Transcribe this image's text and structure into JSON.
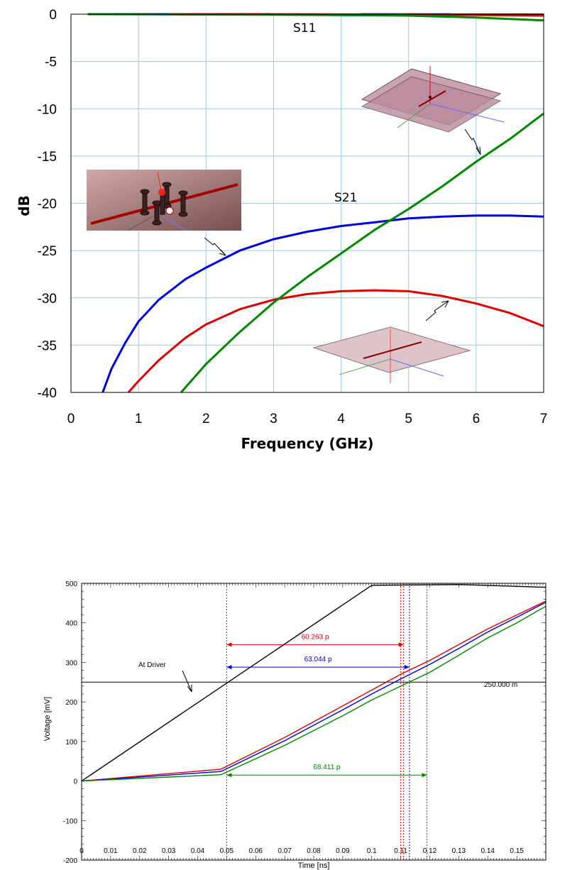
{
  "chart_data": [
    {
      "type": "line",
      "title": "",
      "xlabel": "Frequency (GHz)",
      "ylabel": "dB",
      "xlim": [
        0,
        7
      ],
      "ylim": [
        -40,
        0
      ],
      "xticks": [
        "0",
        "1",
        "2",
        "3",
        "4",
        "5",
        "6",
        "7"
      ],
      "yticks": [
        "0",
        "-5",
        "-10",
        "-15",
        "-20",
        "-25",
        "-30",
        "-35",
        "-40"
      ],
      "grid": true,
      "curve_labels": [
        "S11",
        "S21"
      ],
      "series": [
        {
          "color": "#0000dd",
          "group": "S11",
          "x": [
            0.25,
            7
          ],
          "y": [
            0,
            -0.02
          ]
        },
        {
          "color": "#dd0000",
          "group": "S11",
          "x": [
            1.45,
            5.0,
            6.0,
            7.0
          ],
          "y": [
            0,
            -0.03,
            -0.08,
            -0.15
          ]
        },
        {
          "color": "#008800",
          "group": "S11",
          "x": [
            0.25,
            3.0,
            5.0,
            6.0,
            7.0
          ],
          "y": [
            0,
            -0.05,
            -0.15,
            -0.35,
            -0.65
          ]
        },
        {
          "color": "#0000dd",
          "group": "S21",
          "x": [
            0.47,
            0.6,
            0.8,
            1.0,
            1.3,
            1.7,
            2.0,
            2.5,
            3.0,
            3.5,
            4.0,
            4.5,
            5.0,
            5.5,
            6.0,
            6.5,
            7.0
          ],
          "y": [
            -40,
            -37.5,
            -34.8,
            -32.5,
            -30.2,
            -28.0,
            -26.8,
            -25.0,
            -23.8,
            -23.0,
            -22.4,
            -22.0,
            -21.6,
            -21.4,
            -21.3,
            -21.3,
            -21.4
          ]
        },
        {
          "color": "#dd0000",
          "group": "S21",
          "x": [
            0.85,
            1.0,
            1.3,
            1.7,
            2.0,
            2.5,
            3.0,
            3.5,
            4.0,
            4.5,
            5.0,
            5.5,
            6.0,
            6.5,
            7.0
          ],
          "y": [
            -40,
            -38.8,
            -36.6,
            -34.2,
            -32.8,
            -31.2,
            -30.2,
            -29.6,
            -29.3,
            -29.2,
            -29.3,
            -29.8,
            -30.6,
            -31.6,
            -33.0
          ]
        },
        {
          "color": "#008800",
          "group": "S21",
          "x": [
            1.63,
            2.0,
            2.5,
            3.0,
            3.5,
            4.0,
            4.5,
            5.0,
            5.5,
            6.0,
            6.5,
            7.0
          ],
          "y": [
            -40,
            -37.0,
            -33.6,
            -30.5,
            -27.8,
            -25.3,
            -22.8,
            -20.6,
            -18.2,
            -15.6,
            -13.2,
            -10.5
          ]
        }
      ]
    },
    {
      "type": "line",
      "title": "",
      "xlabel": "Time [ns]",
      "ylabel": "Voltage [mV]",
      "xlim": [
        0,
        0.16
      ],
      "ylim": [
        -200,
        500
      ],
      "xticks": [
        "0",
        "0.01",
        "0.02",
        "0.03",
        "0.04",
        "0.05",
        "0.06",
        "0.07",
        "0.08",
        "0.09",
        "0.1",
        "0.11",
        "0.12",
        "0.13",
        "0.14",
        "0.15"
      ],
      "yticks": [
        "500",
        "400",
        "300",
        "200",
        "100",
        "0",
        "-100",
        "-200"
      ],
      "threshold": {
        "value": 250,
        "label": "250.000 m"
      },
      "series": [
        {
          "name": "At Driver",
          "color": "#000000",
          "x": [
            0,
            0.1,
            0.13,
            0.16
          ],
          "y": [
            0,
            495,
            497,
            490
          ]
        },
        {
          "color": "#dd0000",
          "x": [
            0,
            0.048,
            0.07,
            0.09,
            0.1,
            0.11,
            0.12,
            0.13,
            0.14,
            0.15,
            0.16
          ],
          "y": [
            0,
            30,
            110,
            190,
            230,
            270,
            305,
            345,
            385,
            420,
            455
          ]
        },
        {
          "color": "#0000dd",
          "x": [
            0,
            0.048,
            0.07,
            0.09,
            0.1,
            0.11,
            0.12,
            0.13,
            0.14,
            0.15,
            0.16
          ],
          "y": [
            0,
            24,
            102,
            180,
            220,
            258,
            295,
            335,
            377,
            414,
            452
          ]
        },
        {
          "color": "#008800",
          "x": [
            0,
            0.048,
            0.07,
            0.09,
            0.1,
            0.11,
            0.12,
            0.13,
            0.14,
            0.15,
            0.16
          ],
          "y": [
            0,
            16,
            90,
            165,
            205,
            240,
            275,
            318,
            362,
            400,
            442
          ]
        }
      ],
      "delays": [
        {
          "label": "60.263 p",
          "color": "#dd0000",
          "x1": 0.05,
          "x2": 0.111,
          "y": 345
        },
        {
          "label": "63.044 p",
          "color": "#0000dd",
          "x1": 0.05,
          "x2": 0.113,
          "y": 288
        },
        {
          "label": "68.411 p",
          "color": "#008800",
          "x1": 0.05,
          "x2": 0.119,
          "y": 15
        }
      ],
      "markers": [
        {
          "x": 0.05,
          "color": "#008800"
        },
        {
          "x": 0.11,
          "color": "#dd0000"
        },
        {
          "x": 0.111,
          "color": "#dd0000"
        },
        {
          "x": 0.113,
          "color": "#0000dd"
        },
        {
          "x": 0.119,
          "color": "#008800"
        }
      ]
    }
  ]
}
